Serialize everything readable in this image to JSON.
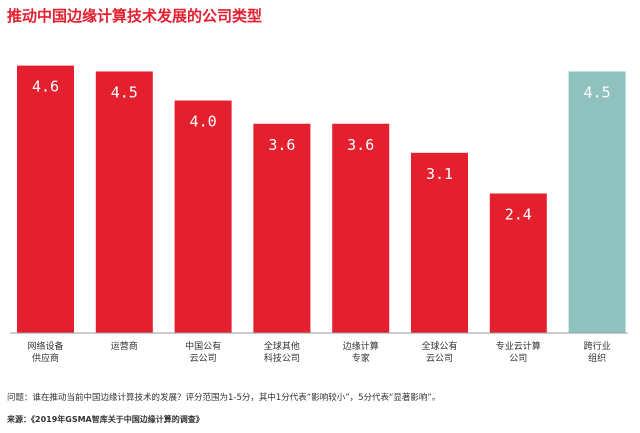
{
  "title": "推动中国边缘计算技术发展的公司类型",
  "chart_data": {
    "type": "bar",
    "title": "推动中国边缘计算技术发展的公司类型",
    "categories": [
      [
        "网络设备",
        "供应商"
      ],
      [
        "运营商"
      ],
      [
        "中国公有",
        "云公司"
      ],
      [
        "全球其他",
        "科技公司"
      ],
      [
        "边缘计算",
        "专家"
      ],
      [
        "全球公有",
        "云公司"
      ],
      [
        "专业云计算",
        "公司"
      ],
      [
        "跨行业",
        "组织"
      ]
    ],
    "values": [
      4.6,
      4.5,
      4.0,
      3.6,
      3.6,
      3.1,
      2.4,
      4.5
    ],
    "value_labels": [
      "4.6",
      "4.5",
      "4.0",
      "3.6",
      "3.6",
      "3.1",
      "2.4",
      "4.5"
    ],
    "bar_colors": [
      "#e4202f",
      "#e4202f",
      "#e4202f",
      "#e4202f",
      "#e4202f",
      "#e4202f",
      "#e4202f",
      "#8fc2be"
    ],
    "ylim": [
      0,
      4.8
    ],
    "grid": false,
    "legend": "none"
  },
  "colors": {
    "accent": "#e4202f",
    "highlight": "#8fc2be",
    "text": "#333333"
  },
  "footer": {
    "question": "问题：谁在推动当前中国边缘计算技术的发展？评分范围为1-5分，其中1分代表“影响较小”，5分代表“显著影响”。",
    "source_label": "来源：",
    "source_text": "《2019年GSMA智库关于中国边缘计算的调查》"
  }
}
